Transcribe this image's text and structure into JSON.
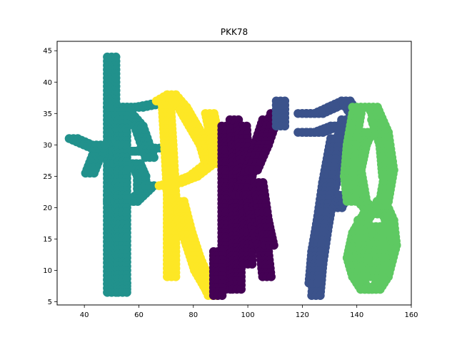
{
  "chart_data": {
    "type": "scatter",
    "title": "PKK78",
    "xlabel": "",
    "ylabel": "",
    "xlim": [
      30,
      160
    ],
    "ylim": [
      4.5,
      46.5
    ],
    "xticks": [
      40,
      60,
      80,
      100,
      120,
      140,
      160
    ],
    "yticks": [
      5,
      10,
      15,
      20,
      25,
      30,
      35,
      40,
      45
    ],
    "grid": false,
    "legend": "none",
    "series": [
      {
        "color": "#21918c",
        "strokes": [
          [
            [
              50,
              6.5
            ],
            [
              50,
              22
            ],
            [
              50,
              36
            ],
            [
              50,
              44
            ]
          ],
          [
            [
              36,
              31
            ],
            [
              44,
              29.5
            ],
            [
              52,
              29
            ],
            [
              60,
              29
            ],
            [
              66,
              29.5
            ]
          ],
          [
            [
              50,
              36
            ],
            [
              60,
              36
            ],
            [
              66,
              36.5
            ]
          ],
          [
            [
              51,
              27
            ],
            [
              59,
              27
            ],
            [
              61,
              25
            ],
            [
              61,
              23
            ]
          ],
          [
            [
              50,
              21
            ],
            [
              58,
              21
            ],
            [
              64,
              23.5
            ]
          ],
          [
            [
              54,
              36
            ],
            [
              60,
              33
            ],
            [
              64,
              28
            ]
          ],
          [
            [
              54,
              36
            ],
            [
              54,
              8
            ],
            [
              54,
              6.5
            ]
          ],
          [
            [
              42,
              25.5
            ],
            [
              46,
              30
            ]
          ]
        ]
      },
      {
        "color": "#fde725",
        "strokes": [
          [
            [
              70,
              37
            ],
            [
              71,
              30
            ],
            [
              72,
              22
            ],
            [
              72,
              15
            ],
            [
              72,
              9
            ]
          ],
          [
            [
              68,
              37
            ],
            [
              72,
              38
            ],
            [
              76,
              36
            ],
            [
              80,
              33
            ],
            [
              84,
              30
            ],
            [
              86,
              27
            ],
            [
              80,
              25
            ],
            [
              74,
              24
            ],
            [
              69,
              23.5
            ]
          ],
          [
            [
              75,
              21
            ],
            [
              78,
              16
            ],
            [
              81,
              12
            ],
            [
              84,
              9
            ],
            [
              87,
              6
            ]
          ],
          [
            [
              76,
              18
            ],
            [
              79,
              14
            ],
            [
              82,
              10
            ],
            [
              86,
              7
            ]
          ],
          [
            [
              86,
              35
            ],
            [
              88,
              31
            ],
            [
              89,
              27
            ]
          ]
        ]
      },
      {
        "color": "#440154",
        "strokes": [
          [
            [
              92,
              33
            ],
            [
              92,
              26
            ],
            [
              92,
              18
            ],
            [
              92,
              10
            ],
            [
              92,
              7
            ]
          ],
          [
            [
              95,
              34
            ],
            [
              96,
              28
            ],
            [
              96,
              20
            ],
            [
              96,
              13
            ],
            [
              96,
              7
            ]
          ],
          [
            [
              98,
              33
            ],
            [
              99,
              25
            ],
            [
              100,
              18
            ],
            [
              100,
              11
            ]
          ],
          [
            [
              107,
              34
            ],
            [
              104,
              30
            ],
            [
              100,
              25
            ],
            [
              97,
              22
            ]
          ],
          [
            [
              110,
              35
            ],
            [
              106,
              30
            ],
            [
              102,
              26
            ]
          ],
          [
            [
              101,
              22
            ],
            [
              103,
              17
            ],
            [
              106,
              13
            ],
            [
              107,
              9
            ]
          ],
          [
            [
              104,
              24
            ],
            [
              106,
              18
            ],
            [
              108,
              14
            ]
          ],
          [
            [
              89,
              13
            ],
            [
              89,
              6
            ]
          ]
        ]
      },
      {
        "color": "#3b528b",
        "strokes": [
          [
            [
              120,
              35
            ],
            [
              126,
              35
            ],
            [
              131,
              36
            ],
            [
              136,
              37
            ],
            [
              139,
              35
            ]
          ],
          [
            [
              120,
              32
            ],
            [
              126,
              32
            ],
            [
              132,
              33
            ],
            [
              137,
              33
            ]
          ],
          [
            [
              136,
              34
            ],
            [
              133,
              28
            ],
            [
              130,
              22
            ],
            [
              128,
              17
            ],
            [
              126,
              11
            ],
            [
              125,
              6
            ]
          ],
          [
            [
              132,
              31
            ],
            [
              129,
              24
            ],
            [
              127,
              18
            ],
            [
              125,
              13
            ],
            [
              124,
              8
            ]
          ],
          [
            [
              112,
              37
            ],
            [
              112,
              33
            ]
          ],
          [
            [
              133,
              20
            ],
            [
              135,
              22
            ]
          ]
        ]
      },
      {
        "color": "#5ec962",
        "strokes": [
          [
            [
              140,
              36
            ],
            [
              146,
              36
            ],
            [
              150,
              32
            ],
            [
              152,
              26
            ],
            [
              150,
              21
            ],
            [
              146,
              19
            ],
            [
              142,
              21
            ],
            [
              140,
              26
            ],
            [
              142,
              30
            ],
            [
              144,
              32
            ]
          ],
          [
            [
              144,
              19
            ],
            [
              140,
              16
            ],
            [
              138,
              12
            ],
            [
              140,
              9
            ],
            [
              143,
              7
            ],
            [
              147,
              7
            ],
            [
              150,
              9
            ],
            [
              153,
              14
            ],
            [
              152,
              18
            ],
            [
              149,
              21
            ]
          ],
          [
            [
              140,
              35
            ],
            [
              138,
              30
            ],
            [
              137,
              25
            ],
            [
              138,
              21
            ]
          ],
          [
            [
              147,
              34
            ],
            [
              150,
              30
            ],
            [
              151,
              25
            ]
          ],
          [
            [
              142,
              18
            ],
            [
              143,
              12
            ],
            [
              145,
              9
            ]
          ],
          [
            [
              147,
              17
            ],
            [
              149,
              12
            ],
            [
              148,
              9
            ]
          ]
        ]
      }
    ]
  }
}
